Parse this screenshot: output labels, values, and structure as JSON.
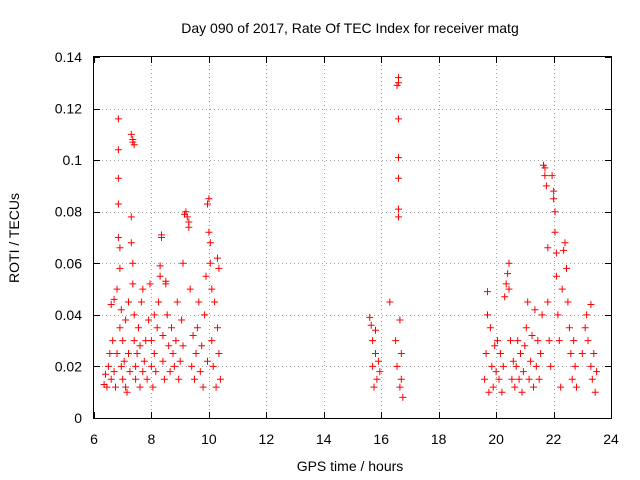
{
  "chart_data": {
    "type": "scatter",
    "title": "Day 090 of 2017, Rate Of TEC Index for receiver matg",
    "xlabel": "GPS time / hours",
    "ylabel": "ROTI / TECUs",
    "xlim": [
      6,
      24
    ],
    "ylim": [
      0,
      0.14
    ],
    "xticks": [
      6,
      8,
      10,
      12,
      14,
      16,
      18,
      20,
      22,
      24
    ],
    "xtick_labels": [
      "6",
      "8",
      "10",
      "12",
      "14",
      "16",
      "18",
      "20",
      "22",
      "24"
    ],
    "yticks": [
      0,
      0.02,
      0.04,
      0.06,
      0.08,
      0.1,
      0.12,
      0.14
    ],
    "ytick_labels": [
      "0",
      "0.02",
      "0.04",
      "0.06",
      "0.08",
      "0.1",
      "0.12",
      "0.14"
    ],
    "grid": true,
    "marker": "+",
    "marker_color": "#ff0000",
    "series": [
      {
        "name": "ROTI",
        "points": [
          [
            6.35,
            0.013
          ],
          [
            6.4,
            0.017
          ],
          [
            6.45,
            0.012
          ],
          [
            6.5,
            0.02
          ],
          [
            6.55,
            0.025
          ],
          [
            6.6,
            0.015
          ],
          [
            6.6,
            0.044
          ],
          [
            6.65,
            0.03
          ],
          [
            6.7,
            0.018
          ],
          [
            6.7,
            0.046
          ],
          [
            6.75,
            0.012
          ],
          [
            6.8,
            0.05
          ],
          [
            6.8,
            0.025
          ],
          [
            6.85,
            0.116
          ],
          [
            6.85,
            0.104
          ],
          [
            6.85,
            0.093
          ],
          [
            6.85,
            0.083
          ],
          [
            6.85,
            0.07
          ],
          [
            6.9,
            0.058
          ],
          [
            6.9,
            0.066
          ],
          [
            6.9,
            0.035
          ],
          [
            6.95,
            0.02
          ],
          [
            6.95,
            0.042
          ],
          [
            7.0,
            0.015
          ],
          [
            7.0,
            0.03
          ],
          [
            7.05,
            0.022
          ],
          [
            7.1,
            0.012
          ],
          [
            7.1,
            0.038
          ],
          [
            7.15,
            0.01
          ],
          [
            7.2,
            0.025
          ],
          [
            7.2,
            0.045
          ],
          [
            7.25,
            0.018
          ],
          [
            7.3,
            0.11
          ],
          [
            7.35,
            0.107
          ],
          [
            7.35,
            0.108
          ],
          [
            7.4,
            0.106
          ],
          [
            7.3,
            0.078
          ],
          [
            7.3,
            0.068
          ],
          [
            7.35,
            0.06
          ],
          [
            7.35,
            0.052
          ],
          [
            7.4,
            0.04
          ],
          [
            7.4,
            0.03
          ],
          [
            7.45,
            0.02
          ],
          [
            7.45,
            0.015
          ],
          [
            7.5,
            0.025
          ],
          [
            7.55,
            0.035
          ],
          [
            7.6,
            0.012
          ],
          [
            7.6,
            0.028
          ],
          [
            7.65,
            0.045
          ],
          [
            7.7,
            0.05
          ],
          [
            7.7,
            0.018
          ],
          [
            7.75,
            0.022
          ],
          [
            7.8,
            0.03
          ],
          [
            7.85,
            0.015
          ],
          [
            7.9,
            0.038
          ],
          [
            7.95,
            0.052
          ],
          [
            8.0,
            0.02
          ],
          [
            8.0,
            0.03
          ],
          [
            8.05,
            0.012
          ],
          [
            8.1,
            0.04
          ],
          [
            8.1,
            0.025
          ],
          [
            8.15,
            0.018
          ],
          [
            8.2,
            0.035
          ],
          [
            8.25,
            0.045
          ],
          [
            8.3,
            0.059
          ],
          [
            8.3,
            0.055
          ],
          [
            8.35,
            0.07
          ],
          [
            8.35,
            0.071
          ],
          [
            8.4,
            0.022
          ],
          [
            8.4,
            0.032
          ],
          [
            8.45,
            0.015
          ],
          [
            8.5,
            0.052
          ],
          [
            8.5,
            0.053
          ],
          [
            8.55,
            0.04
          ],
          [
            8.6,
            0.028
          ],
          [
            8.65,
            0.018
          ],
          [
            8.7,
            0.035
          ],
          [
            8.75,
            0.025
          ],
          [
            8.8,
            0.02
          ],
          [
            8.85,
            0.03
          ],
          [
            8.9,
            0.045
          ],
          [
            8.95,
            0.015
          ],
          [
            9.0,
            0.022
          ],
          [
            9.05,
            0.038
          ],
          [
            9.1,
            0.028
          ],
          [
            9.1,
            0.06
          ],
          [
            9.15,
            0.079
          ],
          [
            9.2,
            0.08
          ],
          [
            9.25,
            0.078
          ],
          [
            9.3,
            0.076
          ],
          [
            9.3,
            0.074
          ],
          [
            9.35,
            0.05
          ],
          [
            9.4,
            0.02
          ],
          [
            9.45,
            0.032
          ],
          [
            9.5,
            0.015
          ],
          [
            9.55,
            0.025
          ],
          [
            9.6,
            0.035
          ],
          [
            9.65,
            0.045
          ],
          [
            9.7,
            0.018
          ],
          [
            9.75,
            0.028
          ],
          [
            9.8,
            0.012
          ],
          [
            9.85,
            0.04
          ],
          [
            9.9,
            0.055
          ],
          [
            9.95,
            0.022
          ],
          [
            9.95,
            0.083
          ],
          [
            10.0,
            0.085
          ],
          [
            10.0,
            0.072
          ],
          [
            10.05,
            0.068
          ],
          [
            10.05,
            0.06
          ],
          [
            10.1,
            0.05
          ],
          [
            10.1,
            0.03
          ],
          [
            10.15,
            0.02
          ],
          [
            10.2,
            0.045
          ],
          [
            10.25,
            0.012
          ],
          [
            10.3,
            0.062
          ],
          [
            10.3,
            0.035
          ],
          [
            10.35,
            0.025
          ],
          [
            10.35,
            0.058
          ],
          [
            10.4,
            0.015
          ],
          [
            15.6,
            0.039
          ],
          [
            15.65,
            0.036
          ],
          [
            15.7,
            0.03
          ],
          [
            15.7,
            0.02
          ],
          [
            15.75,
            0.012
          ],
          [
            15.8,
            0.025
          ],
          [
            15.8,
            0.034
          ],
          [
            15.85,
            0.015
          ],
          [
            15.9,
            0.022
          ],
          [
            15.95,
            0.018
          ],
          [
            16.3,
            0.045
          ],
          [
            16.5,
            0.03
          ],
          [
            16.55,
            0.02
          ],
          [
            16.55,
            0.129
          ],
          [
            16.6,
            0.132
          ],
          [
            16.6,
            0.13
          ],
          [
            16.6,
            0.116
          ],
          [
            16.6,
            0.101
          ],
          [
            16.6,
            0.093
          ],
          [
            16.6,
            0.081
          ],
          [
            16.6,
            0.078
          ],
          [
            16.65,
            0.038
          ],
          [
            16.65,
            0.012
          ],
          [
            16.7,
            0.025
          ],
          [
            16.7,
            0.015
          ],
          [
            16.75,
            0.008
          ],
          [
            19.6,
            0.015
          ],
          [
            19.65,
            0.025
          ],
          [
            19.7,
            0.049
          ],
          [
            19.7,
            0.04
          ],
          [
            19.75,
            0.01
          ],
          [
            19.8,
            0.035
          ],
          [
            19.85,
            0.02
          ],
          [
            19.9,
            0.012
          ],
          [
            19.95,
            0.028
          ],
          [
            20.0,
            0.018
          ],
          [
            20.05,
            0.03
          ],
          [
            20.1,
            0.015
          ],
          [
            20.15,
            0.025
          ],
          [
            20.2,
            0.01
          ],
          [
            20.25,
            0.02
          ],
          [
            20.3,
            0.047
          ],
          [
            20.35,
            0.052
          ],
          [
            20.4,
            0.056
          ],
          [
            20.45,
            0.06
          ],
          [
            20.45,
            0.05
          ],
          [
            20.5,
            0.03
          ],
          [
            20.55,
            0.015
          ],
          [
            20.6,
            0.022
          ],
          [
            20.65,
            0.012
          ],
          [
            20.7,
            0.02
          ],
          [
            20.75,
            0.03
          ],
          [
            20.8,
            0.015
          ],
          [
            20.85,
            0.025
          ],
          [
            20.9,
            0.01
          ],
          [
            20.95,
            0.018
          ],
          [
            21.0,
            0.028
          ],
          [
            21.05,
            0.035
          ],
          [
            21.1,
            0.045
          ],
          [
            21.15,
            0.015
          ],
          [
            21.2,
            0.022
          ],
          [
            21.25,
            0.032
          ],
          [
            21.3,
            0.012
          ],
          [
            21.35,
            0.042
          ],
          [
            21.4,
            0.02
          ],
          [
            21.45,
            0.03
          ],
          [
            21.5,
            0.015
          ],
          [
            21.55,
            0.025
          ],
          [
            21.6,
            0.04
          ],
          [
            21.65,
            0.098
          ],
          [
            21.7,
            0.097
          ],
          [
            21.7,
            0.094
          ],
          [
            21.75,
            0.09
          ],
          [
            21.8,
            0.066
          ],
          [
            21.8,
            0.045
          ],
          [
            21.85,
            0.03
          ],
          [
            21.9,
            0.02
          ],
          [
            21.95,
            0.094
          ],
          [
            22.0,
            0.088
          ],
          [
            22.0,
            0.085
          ],
          [
            22.05,
            0.08
          ],
          [
            22.05,
            0.072
          ],
          [
            22.1,
            0.064
          ],
          [
            22.1,
            0.055
          ],
          [
            22.15,
            0.04
          ],
          [
            22.2,
            0.03
          ],
          [
            22.25,
            0.012
          ],
          [
            22.3,
            0.05
          ],
          [
            22.35,
            0.065
          ],
          [
            22.4,
            0.068
          ],
          [
            22.45,
            0.058
          ],
          [
            22.5,
            0.045
          ],
          [
            22.55,
            0.035
          ],
          [
            22.6,
            0.025
          ],
          [
            22.65,
            0.015
          ],
          [
            22.7,
            0.03
          ],
          [
            22.75,
            0.02
          ],
          [
            22.8,
            0.012
          ],
          [
            23.0,
            0.025
          ],
          [
            23.1,
            0.035
          ],
          [
            23.15,
            0.04
          ],
          [
            23.2,
            0.03
          ],
          [
            23.3,
            0.044
          ],
          [
            23.3,
            0.02
          ],
          [
            23.35,
            0.015
          ],
          [
            23.4,
            0.025
          ],
          [
            23.45,
            0.01
          ],
          [
            23.5,
            0.018
          ]
        ]
      }
    ]
  }
}
